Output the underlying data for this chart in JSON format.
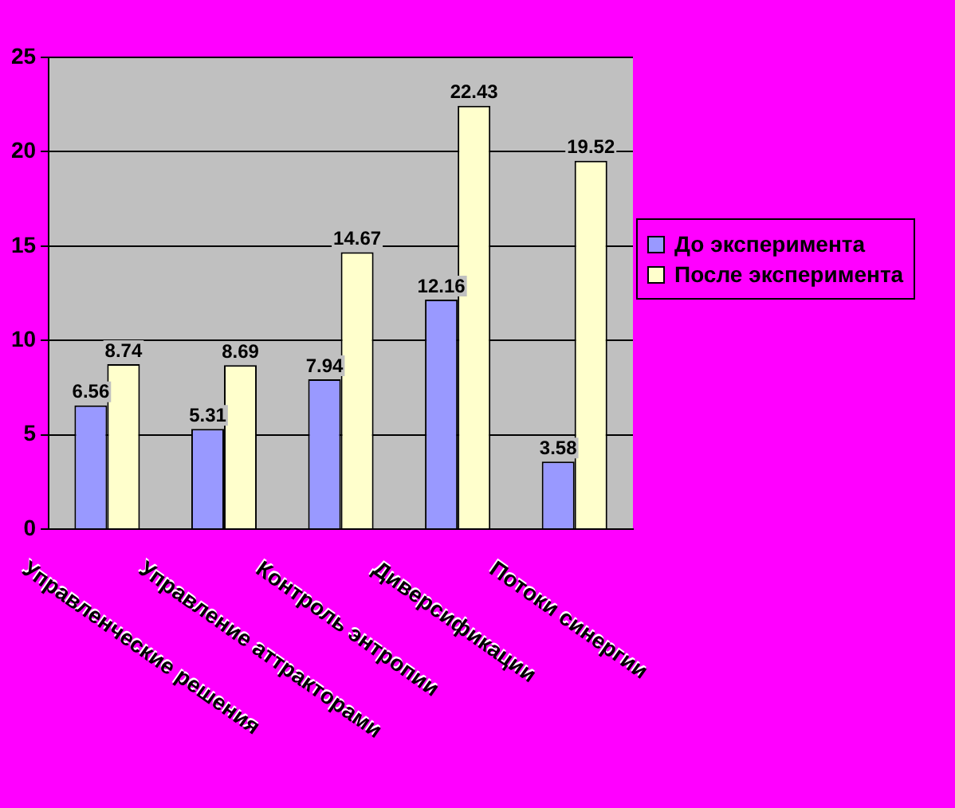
{
  "chart_data": {
    "type": "bar",
    "categories": [
      "Управленческие решения",
      "Управление аттракторами",
      "Контроль энтропии",
      "Диверсификации",
      "Потоки синергии"
    ],
    "series": [
      {
        "name": "До эксперимента",
        "color": "#9999ff",
        "values": [
          6.56,
          5.31,
          7.94,
          12.16,
          3.58
        ]
      },
      {
        "name": "После эксперимента",
        "color": "#ffffcc",
        "values": [
          8.74,
          8.69,
          14.67,
          22.43,
          19.52
        ]
      }
    ],
    "ylim": [
      0,
      25
    ],
    "yticks": [
      0,
      5,
      10,
      15,
      20,
      25
    ],
    "grid": "y",
    "legend": "right",
    "data_labels": true
  }
}
